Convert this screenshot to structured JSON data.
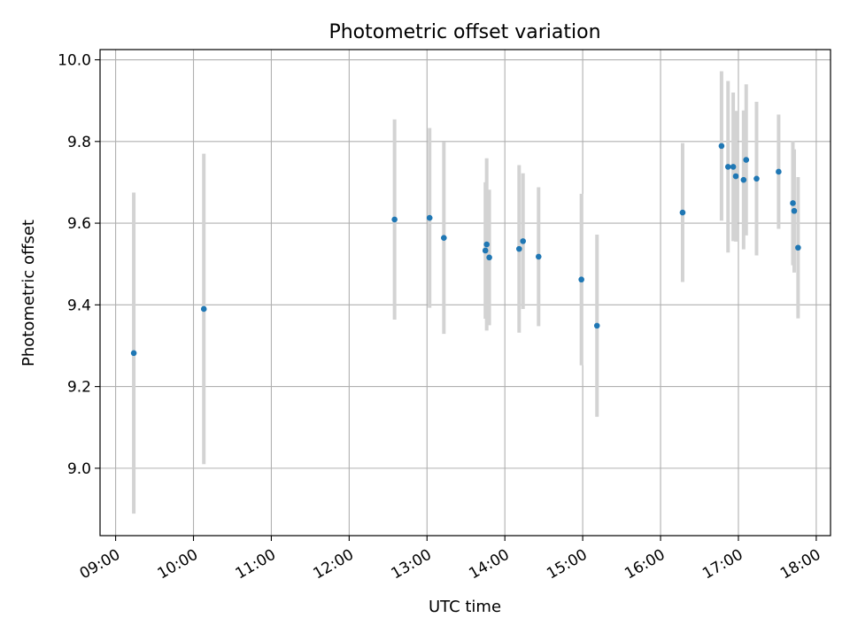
{
  "chart_data": {
    "type": "scatter",
    "title": "Photometric offset variation",
    "xlabel": "UTC time",
    "ylabel": "Photometric offset",
    "x_axis_type": "time",
    "xlim": [
      "08:48",
      "18:11"
    ],
    "ylim": [
      8.835,
      10.025
    ],
    "x_ticks": [
      "09:00",
      "10:00",
      "11:00",
      "12:00",
      "13:00",
      "14:00",
      "15:00",
      "16:00",
      "17:00",
      "18:00"
    ],
    "y_ticks": [
      9.0,
      9.2,
      9.4,
      9.6,
      9.8,
      10.0
    ],
    "y_tick_labels": [
      "9.0",
      "9.2",
      "9.4",
      "9.6",
      "9.8",
      "10.0"
    ],
    "grid": true,
    "legend": "none",
    "point_color": "#1f77b4",
    "errorbar_color": "#d3d3d3",
    "series": [
      {
        "points": [
          {
            "t": "09:14",
            "y": 9.282,
            "err": 0.393
          },
          {
            "t": "10:08",
            "y": 9.39,
            "err": 0.38
          },
          {
            "t": "12:35",
            "y": 9.609,
            "err": 0.245
          },
          {
            "t": "13:02",
            "y": 9.613,
            "err": 0.22
          },
          {
            "t": "13:13",
            "y": 9.564,
            "err": 0.235
          },
          {
            "t": "13:45",
            "y": 9.533,
            "err": 0.167
          },
          {
            "t": "13:46",
            "y": 9.548,
            "err": 0.211
          },
          {
            "t": "13:48",
            "y": 9.516,
            "err": 0.166
          },
          {
            "t": "14:11",
            "y": 9.537,
            "err": 0.205
          },
          {
            "t": "14:14",
            "y": 9.556,
            "err": 0.166
          },
          {
            "t": "14:26",
            "y": 9.518,
            "err": 0.17
          },
          {
            "t": "14:59",
            "y": 9.462,
            "err": 0.21
          },
          {
            "t": "15:11",
            "y": 9.349,
            "err": 0.223
          },
          {
            "t": "16:17",
            "y": 9.626,
            "err": 0.17
          },
          {
            "t": "16:47",
            "y": 9.789,
            "err": 0.183
          },
          {
            "t": "16:52",
            "y": 9.738,
            "err": 0.21
          },
          {
            "t": "16:56",
            "y": 9.738,
            "err": 0.182
          },
          {
            "t": "16:58",
            "y": 9.715,
            "err": 0.16
          },
          {
            "t": "17:04",
            "y": 9.706,
            "err": 0.17
          },
          {
            "t": "17:06",
            "y": 9.755,
            "err": 0.185
          },
          {
            "t": "17:14",
            "y": 9.709,
            "err": 0.188
          },
          {
            "t": "17:31",
            "y": 9.726,
            "err": 0.14
          },
          {
            "t": "17:42",
            "y": 9.649,
            "err": 0.152
          },
          {
            "t": "17:43",
            "y": 9.63,
            "err": 0.151
          },
          {
            "t": "17:46",
            "y": 9.54,
            "err": 0.173
          }
        ]
      }
    ]
  }
}
